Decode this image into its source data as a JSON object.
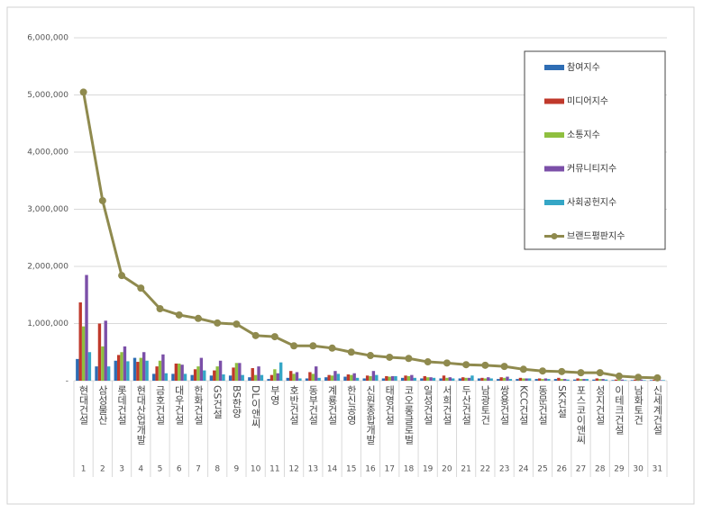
{
  "chart_data": {
    "type": "bar",
    "categories": [
      "현대건설",
      "삼성물산",
      "롯데건설",
      "현대산업개발",
      "금호건설",
      "대우건설",
      "한화건설",
      "GS건설",
      "BS한양",
      "DL이앤씨",
      "부영",
      "호반건설",
      "동부건설",
      "계룡건설",
      "한신공영",
      "신원종합개발",
      "태영건설",
      "코오롱글로벌",
      "일성건설",
      "서희건설",
      "두산건설",
      "남광토건",
      "쌍용건설",
      "KCC건설",
      "동문건설",
      "SK건설",
      "포스코이앤씨",
      "성지건설",
      "이테크건설",
      "남화토건",
      "신세계건설"
    ],
    "ranks": [
      1,
      2,
      3,
      4,
      5,
      6,
      7,
      8,
      9,
      10,
      11,
      12,
      13,
      14,
      15,
      16,
      17,
      18,
      19,
      20,
      21,
      22,
      23,
      24,
      25,
      26,
      27,
      28,
      29,
      30,
      31
    ],
    "series": [
      {
        "name": "참여지수",
        "color": "#2e6db4",
        "type": "bar",
        "values": [
          380000,
          250000,
          350000,
          400000,
          120000,
          120000,
          100000,
          90000,
          90000,
          60000,
          30000,
          50000,
          40000,
          60000,
          70000,
          40000,
          40000,
          50000,
          40000,
          40000,
          40000,
          40000,
          30000,
          30000,
          30000,
          30000,
          20000,
          20000,
          10000,
          10000,
          10000
        ]
      },
      {
        "name": "미디어지수",
        "color": "#c0392b",
        "type": "bar",
        "values": [
          1370000,
          1000000,
          450000,
          330000,
          250000,
          300000,
          200000,
          180000,
          230000,
          220000,
          100000,
          170000,
          150000,
          100000,
          110000,
          90000,
          80000,
          90000,
          80000,
          90000,
          60000,
          50000,
          60000,
          50000,
          40000,
          50000,
          40000,
          40000,
          20000,
          20000,
          20000
        ]
      },
      {
        "name": "소통지수",
        "color": "#8fbf3f",
        "type": "bar",
        "values": [
          950000,
          600000,
          500000,
          400000,
          350000,
          300000,
          250000,
          250000,
          310000,
          100000,
          200000,
          120000,
          120000,
          90000,
          100000,
          80000,
          70000,
          80000,
          60000,
          50000,
          50000,
          40000,
          50000,
          40000,
          30000,
          30000,
          30000,
          30000,
          20000,
          10000,
          10000
        ]
      },
      {
        "name": "커뮤니티지수",
        "color": "#7b4fa8",
        "type": "bar",
        "values": [
          1850000,
          1050000,
          600000,
          500000,
          460000,
          280000,
          400000,
          350000,
          310000,
          250000,
          130000,
          150000,
          250000,
          170000,
          130000,
          170000,
          80000,
          100000,
          60000,
          60000,
          50000,
          60000,
          70000,
          40000,
          40000,
          30000,
          30000,
          30000,
          20000,
          20000,
          10000
        ]
      },
      {
        "name": "사회공헌지수",
        "color": "#35a6c6",
        "type": "bar",
        "values": [
          500000,
          250000,
          340000,
          350000,
          130000,
          120000,
          180000,
          110000,
          100000,
          100000,
          320000,
          40000,
          50000,
          120000,
          50000,
          100000,
          80000,
          50000,
          50000,
          40000,
          90000,
          40000,
          30000,
          40000,
          30000,
          20000,
          30000,
          20000,
          10000,
          10000,
          10000
        ]
      },
      {
        "name": "브랜드평판지수",
        "color": "#8f8a4e",
        "type": "line",
        "values": [
          5050000,
          3150000,
          1840000,
          1620000,
          1260000,
          1150000,
          1090000,
          1010000,
          990000,
          790000,
          770000,
          610000,
          610000,
          570000,
          500000,
          440000,
          410000,
          390000,
          330000,
          310000,
          280000,
          270000,
          250000,
          200000,
          170000,
          160000,
          140000,
          140000,
          80000,
          60000,
          50000
        ]
      }
    ],
    "ylim": [
      0,
      6000000
    ],
    "yticks": [
      {
        "value": 0,
        "label": "-"
      },
      {
        "value": 1000000,
        "label": "1,000,000"
      },
      {
        "value": 2000000,
        "label": "2,000,000"
      },
      {
        "value": 3000000,
        "label": "3,000,000"
      },
      {
        "value": 4000000,
        "label": "4,000,000"
      },
      {
        "value": 5000000,
        "label": "5,000,000"
      },
      {
        "value": 6000000,
        "label": "6,000,000"
      }
    ],
    "grid": true,
    "legend": "top-right"
  }
}
